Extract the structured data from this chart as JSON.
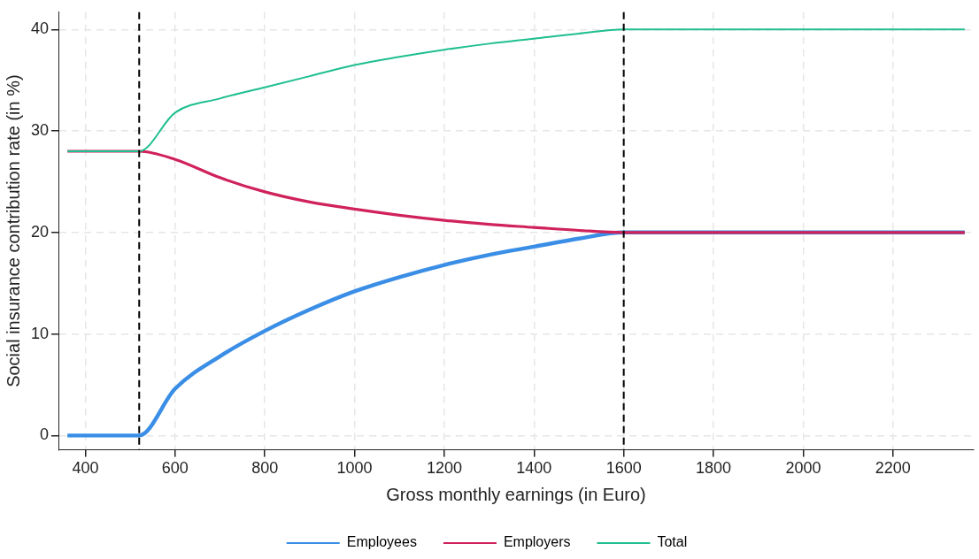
{
  "chart_data": {
    "type": "line",
    "xlabel": "Gross monthly earnings (in Euro)",
    "ylabel": "Social insurance contribution rate (in %)",
    "x": [
      360,
      520,
      600,
      700,
      800,
      900,
      1000,
      1100,
      1200,
      1300,
      1400,
      1500,
      1600,
      2360
    ],
    "series": [
      {
        "name": "Employees",
        "color": "#3a8ee6",
        "values": [
          0,
          0,
          4.6,
          7.8,
          10.3,
          12.4,
          14.2,
          15.6,
          16.8,
          17.8,
          18.6,
          19.4,
          20,
          20
        ]
      },
      {
        "name": "Employers",
        "color": "#d0225a",
        "values": [
          28,
          28,
          27.2,
          25.4,
          24.0,
          23.0,
          22.3,
          21.7,
          21.2,
          20.8,
          20.5,
          20.2,
          20,
          20
        ]
      },
      {
        "name": "Total",
        "color": "#1fbf8f",
        "values": [
          28,
          28,
          31.8,
          33.2,
          34.3,
          35.4,
          36.5,
          37.3,
          38.0,
          38.6,
          39.1,
          39.6,
          40,
          40
        ]
      }
    ],
    "xlim": [
      340,
      2380
    ],
    "xticks": [
      400,
      600,
      800,
      1000,
      1200,
      1400,
      1600,
      1800,
      2000,
      2200
    ],
    "ylim": [
      -1.4,
      41.7
    ],
    "yticks": [
      0,
      10,
      20,
      30,
      40
    ],
    "ref_lines": [
      {
        "axis": "x",
        "value": 520,
        "color": "#000000",
        "line_style": "dashed"
      },
      {
        "axis": "x",
        "value": 1600,
        "color": "#000000",
        "line_style": "dashed"
      }
    ],
    "grid": true,
    "legend": "bottom",
    "marker": "none",
    "line_style": "solid"
  }
}
